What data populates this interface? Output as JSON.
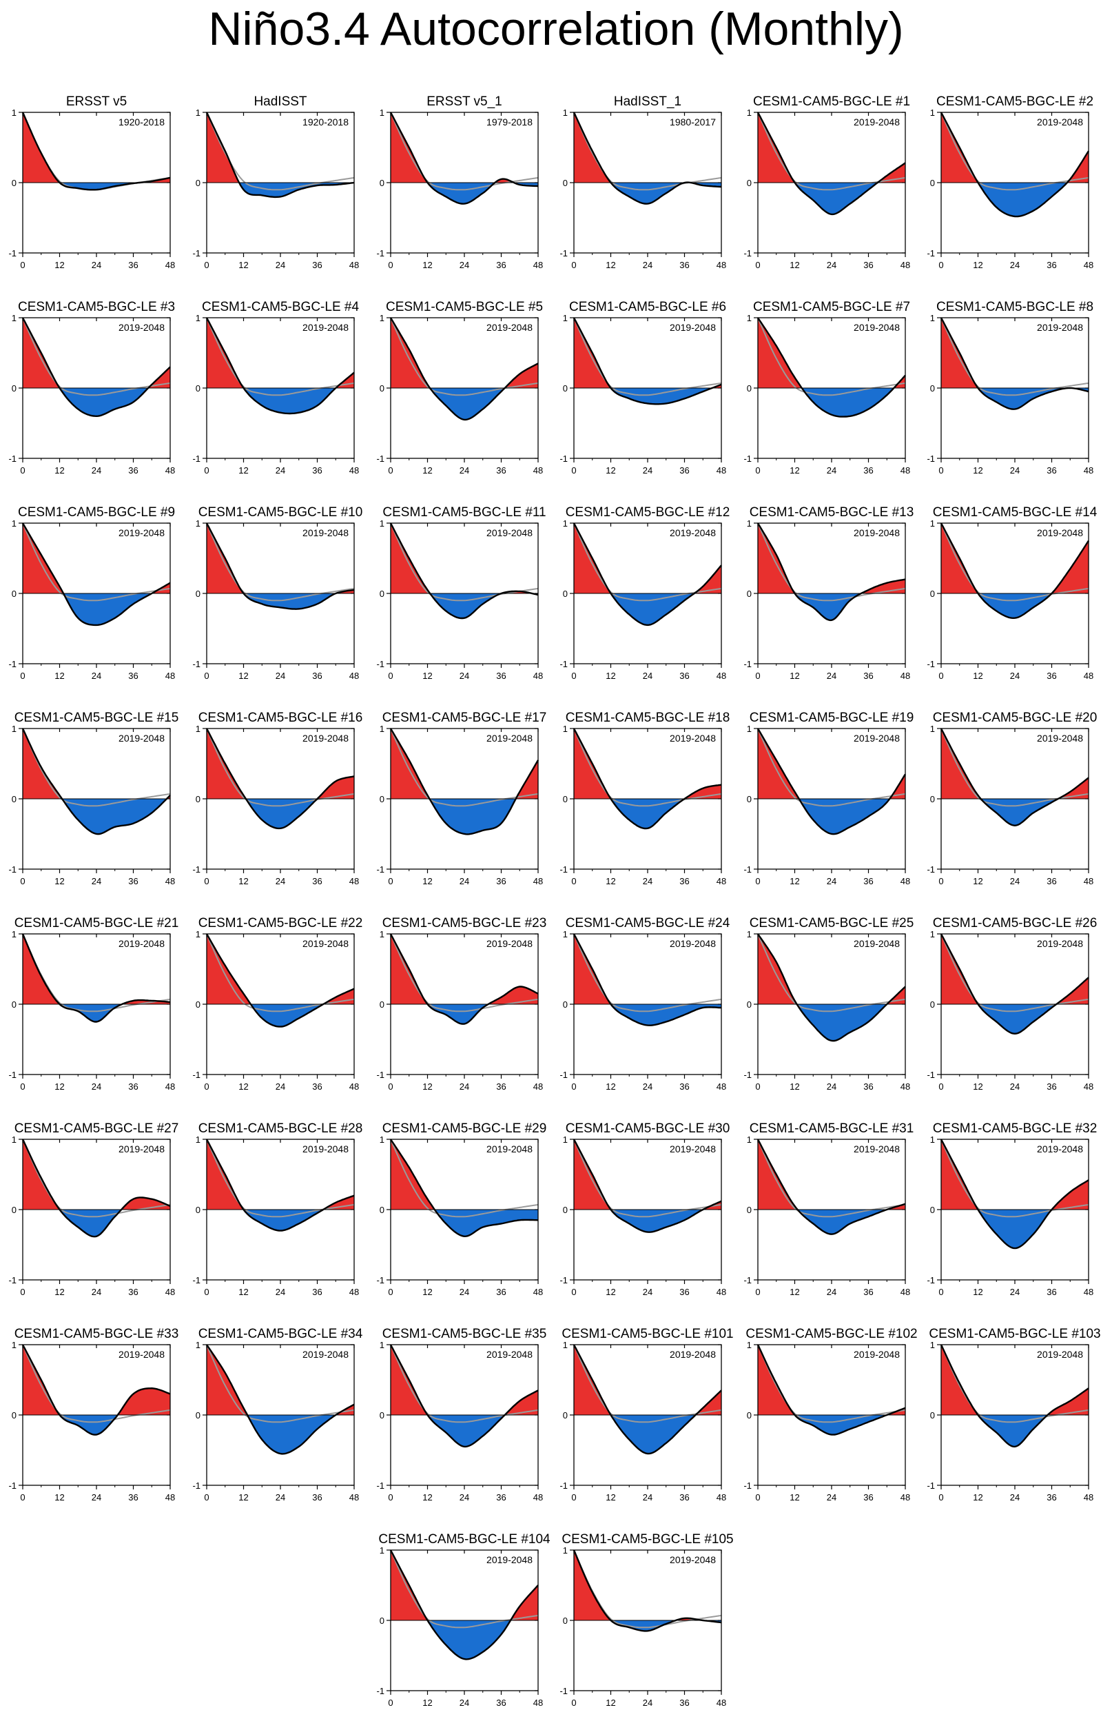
{
  "title": "Niño3.4 Autocorrelation (Monthly)",
  "colors": {
    "positive": "#e8302e",
    "negative": "#1a6fd1",
    "line": "#000000",
    "reference": "#9a9a9a"
  },
  "axes": {
    "x_ticks": [
      "0",
      "12",
      "24",
      "36",
      "48"
    ],
    "y_ticks": [
      "1",
      "0",
      "-1"
    ],
    "xlim": [
      0,
      48
    ],
    "ylim": [
      -1,
      1
    ]
  },
  "chart_data": {
    "type": "area",
    "x_unit": "lag (months)",
    "x_keys": [
      0,
      6,
      12,
      18,
      24,
      30,
      36,
      42,
      48
    ],
    "reference_series": [
      1.0,
      0.42,
      0.02,
      -0.08,
      -0.1,
      -0.06,
      -0.01,
      0.03,
      0.07
    ],
    "panels": [
      {
        "title": "ERSST v5",
        "period": "1920-2018",
        "values": [
          1.0,
          0.42,
          0.0,
          -0.08,
          -0.1,
          -0.05,
          -0.01,
          0.02,
          0.07
        ]
      },
      {
        "title": "HadISST",
        "period": "1920-2018",
        "values": [
          1.0,
          0.45,
          -0.1,
          -0.18,
          -0.2,
          -0.1,
          -0.04,
          -0.03,
          0.0
        ]
      },
      {
        "title": "ERSST v5_1",
        "period": "1979-2018",
        "values": [
          1.0,
          0.5,
          0.0,
          -0.2,
          -0.3,
          -0.15,
          0.05,
          -0.03,
          -0.05
        ]
      },
      {
        "title": "HadISST_1",
        "period": "1980-2017",
        "values": [
          1.0,
          0.45,
          0.0,
          -0.2,
          -0.3,
          -0.15,
          0.0,
          -0.04,
          -0.06
        ]
      },
      {
        "title": "CESM1-CAM5-BGC-LE #1",
        "period": "2019-2048",
        "values": [
          1.0,
          0.5,
          0.0,
          -0.25,
          -0.45,
          -0.3,
          -0.1,
          0.1,
          0.28
        ]
      },
      {
        "title": "CESM1-CAM5-BGC-LE #2",
        "period": "2019-2048",
        "values": [
          1.0,
          0.5,
          0.0,
          -0.35,
          -0.48,
          -0.4,
          -0.2,
          0.05,
          0.45
        ]
      },
      {
        "title": "CESM1-CAM5-BGC-LE #3",
        "period": "2019-2048",
        "values": [
          1.0,
          0.5,
          0.0,
          -0.3,
          -0.4,
          -0.3,
          -0.2,
          0.05,
          0.3
        ]
      },
      {
        "title": "CESM1-CAM5-BGC-LE #4",
        "period": "2019-2048",
        "values": [
          1.0,
          0.5,
          0.0,
          -0.25,
          -0.35,
          -0.35,
          -0.25,
          0.0,
          0.22
        ]
      },
      {
        "title": "CESM1-CAM5-BGC-LE #5",
        "period": "2019-2048",
        "values": [
          1.0,
          0.55,
          0.05,
          -0.25,
          -0.45,
          -0.3,
          -0.05,
          0.2,
          0.35
        ]
      },
      {
        "title": "CESM1-CAM5-BGC-LE #6",
        "period": "2019-2048",
        "values": [
          1.0,
          0.5,
          0.0,
          -0.15,
          -0.22,
          -0.22,
          -0.15,
          -0.05,
          0.05
        ]
      },
      {
        "title": "CESM1-CAM5-BGC-LE #7",
        "period": "2019-2048",
        "values": [
          1.0,
          0.6,
          0.15,
          -0.2,
          -0.38,
          -0.4,
          -0.3,
          -0.1,
          0.18
        ]
      },
      {
        "title": "CESM1-CAM5-BGC-LE #8",
        "period": "2019-2048",
        "values": [
          1.0,
          0.5,
          0.0,
          -0.2,
          -0.3,
          -0.15,
          -0.05,
          0.0,
          -0.05
        ]
      },
      {
        "title": "CESM1-CAM5-BGC-LE #9",
        "period": "2019-2048",
        "values": [
          1.0,
          0.55,
          0.1,
          -0.35,
          -0.45,
          -0.35,
          -0.15,
          0.0,
          0.15
        ]
      },
      {
        "title": "CESM1-CAM5-BGC-LE #10",
        "period": "2019-2048",
        "values": [
          1.0,
          0.5,
          0.0,
          -0.15,
          -0.2,
          -0.22,
          -0.15,
          0.0,
          0.05
        ]
      },
      {
        "title": "CESM1-CAM5-BGC-LE #11",
        "period": "2019-2048",
        "values": [
          1.0,
          0.5,
          0.05,
          -0.25,
          -0.35,
          -0.15,
          0.0,
          0.03,
          -0.02
        ]
      },
      {
        "title": "CESM1-CAM5-BGC-LE #12",
        "period": "2019-2048",
        "values": [
          1.0,
          0.5,
          0.0,
          -0.3,
          -0.45,
          -0.3,
          -0.1,
          0.1,
          0.4
        ]
      },
      {
        "title": "CESM1-CAM5-BGC-LE #13",
        "period": "2019-2048",
        "values": [
          1.0,
          0.55,
          0.0,
          -0.2,
          -0.38,
          -0.1,
          0.05,
          0.15,
          0.2
        ]
      },
      {
        "title": "CESM1-CAM5-BGC-LE #14",
        "period": "2019-2048",
        "values": [
          1.0,
          0.5,
          0.0,
          -0.25,
          -0.35,
          -0.2,
          0.0,
          0.35,
          0.75
        ]
      },
      {
        "title": "CESM1-CAM5-BGC-LE #15",
        "period": "2019-2048",
        "values": [
          1.0,
          0.45,
          0.05,
          -0.3,
          -0.5,
          -0.4,
          -0.35,
          -0.2,
          0.05
        ]
      },
      {
        "title": "CESM1-CAM5-BGC-LE #16",
        "period": "2019-2048",
        "values": [
          1.0,
          0.5,
          0.05,
          -0.3,
          -0.42,
          -0.25,
          0.0,
          0.25,
          0.32
        ]
      },
      {
        "title": "CESM1-CAM5-BGC-LE #17",
        "period": "2019-2048",
        "values": [
          1.0,
          0.55,
          0.05,
          -0.35,
          -0.5,
          -0.45,
          -0.35,
          0.1,
          0.55
        ]
      },
      {
        "title": "CESM1-CAM5-BGC-LE #18",
        "period": "2019-2048",
        "values": [
          1.0,
          0.5,
          0.0,
          -0.3,
          -0.42,
          -0.2,
          0.0,
          0.15,
          0.2
        ]
      },
      {
        "title": "CESM1-CAM5-BGC-LE #19",
        "period": "2019-2048",
        "values": [
          1.0,
          0.55,
          0.1,
          -0.3,
          -0.5,
          -0.4,
          -0.25,
          -0.05,
          0.35
        ]
      },
      {
        "title": "CESM1-CAM5-BGC-LE #20",
        "period": "2019-2048",
        "values": [
          1.0,
          0.5,
          0.05,
          -0.2,
          -0.38,
          -0.2,
          -0.05,
          0.1,
          0.3
        ]
      },
      {
        "title": "CESM1-CAM5-BGC-LE #21",
        "period": "2019-2048",
        "values": [
          1.0,
          0.4,
          0.0,
          -0.1,
          -0.25,
          -0.05,
          0.05,
          0.05,
          0.03
        ]
      },
      {
        "title": "CESM1-CAM5-BGC-LE #22",
        "period": "2019-2048",
        "values": [
          1.0,
          0.55,
          0.15,
          -0.2,
          -0.32,
          -0.2,
          -0.05,
          0.1,
          0.22
        ]
      },
      {
        "title": "CESM1-CAM5-BGC-LE #23",
        "period": "2019-2048",
        "values": [
          1.0,
          0.5,
          0.0,
          -0.15,
          -0.28,
          -0.05,
          0.1,
          0.25,
          0.15
        ]
      },
      {
        "title": "CESM1-CAM5-BGC-LE #24",
        "period": "2019-2048",
        "values": [
          1.0,
          0.5,
          0.0,
          -0.2,
          -0.3,
          -0.25,
          -0.15,
          -0.05,
          -0.05
        ]
      },
      {
        "title": "CESM1-CAM5-BGC-LE #25",
        "period": "2019-2048",
        "values": [
          1.0,
          0.6,
          0.05,
          -0.3,
          -0.52,
          -0.4,
          -0.25,
          0.0,
          0.25
        ]
      },
      {
        "title": "CESM1-CAM5-BGC-LE #26",
        "period": "2019-2048",
        "values": [
          1.0,
          0.5,
          0.0,
          -0.25,
          -0.42,
          -0.25,
          -0.05,
          0.15,
          0.38
        ]
      },
      {
        "title": "CESM1-CAM5-BGC-LE #27",
        "period": "2019-2048",
        "values": [
          1.0,
          0.45,
          0.0,
          -0.25,
          -0.38,
          -0.1,
          0.15,
          0.15,
          0.05
        ]
      },
      {
        "title": "CESM1-CAM5-BGC-LE #28",
        "period": "2019-2048",
        "values": [
          1.0,
          0.5,
          0.0,
          -0.2,
          -0.3,
          -0.2,
          -0.05,
          0.1,
          0.2
        ]
      },
      {
        "title": "CESM1-CAM5-BGC-LE #29",
        "period": "2019-2048",
        "values": [
          1.0,
          0.6,
          0.15,
          -0.2,
          -0.38,
          -0.25,
          -0.2,
          -0.15,
          -0.15
        ]
      },
      {
        "title": "CESM1-CAM5-BGC-LE #30",
        "period": "2019-2048",
        "values": [
          1.0,
          0.5,
          0.0,
          -0.2,
          -0.32,
          -0.25,
          -0.15,
          0.0,
          0.12
        ]
      },
      {
        "title": "CESM1-CAM5-BGC-LE #31",
        "period": "2019-2048",
        "values": [
          1.0,
          0.5,
          0.05,
          -0.2,
          -0.35,
          -0.2,
          -0.1,
          0.0,
          0.08
        ]
      },
      {
        "title": "CESM1-CAM5-BGC-LE #32",
        "period": "2019-2048",
        "values": [
          1.0,
          0.5,
          0.0,
          -0.35,
          -0.55,
          -0.35,
          0.0,
          0.25,
          0.42
        ]
      },
      {
        "title": "CESM1-CAM5-BGC-LE #33",
        "period": "2019-2048",
        "values": [
          1.0,
          0.5,
          0.0,
          -0.15,
          -0.28,
          -0.05,
          0.3,
          0.38,
          0.3
        ]
      },
      {
        "title": "CESM1-CAM5-BGC-LE #34",
        "period": "2019-2048",
        "values": [
          1.0,
          0.6,
          0.1,
          -0.35,
          -0.55,
          -0.45,
          -0.2,
          0.0,
          0.15
        ]
      },
      {
        "title": "CESM1-CAM5-BGC-LE #35",
        "period": "2019-2048",
        "values": [
          1.0,
          0.5,
          0.0,
          -0.25,
          -0.45,
          -0.3,
          -0.05,
          0.2,
          0.35
        ]
      },
      {
        "title": "CESM1-CAM5-BGC-LE #101",
        "period": "2019-2048",
        "values": [
          1.0,
          0.5,
          0.0,
          -0.35,
          -0.55,
          -0.4,
          -0.15,
          0.1,
          0.35
        ]
      },
      {
        "title": "CESM1-CAM5-BGC-LE #102",
        "period": "2019-2048",
        "values": [
          1.0,
          0.45,
          0.0,
          -0.15,
          -0.28,
          -0.2,
          -0.1,
          0.0,
          0.1
        ]
      },
      {
        "title": "CESM1-CAM5-BGC-LE #103",
        "period": "2019-2048",
        "values": [
          1.0,
          0.45,
          0.0,
          -0.25,
          -0.45,
          -0.2,
          0.05,
          0.2,
          0.38
        ]
      },
      {
        "title": "CESM1-CAM5-BGC-LE #104",
        "period": "2019-2048",
        "values": [
          1.0,
          0.5,
          0.0,
          -0.35,
          -0.55,
          -0.45,
          -0.2,
          0.2,
          0.5
        ]
      },
      {
        "title": "CESM1-CAM5-BGC-LE #105",
        "period": "2019-2048",
        "values": [
          1.0,
          0.4,
          0.0,
          -0.1,
          -0.15,
          -0.05,
          0.03,
          0.0,
          -0.03
        ]
      }
    ]
  }
}
